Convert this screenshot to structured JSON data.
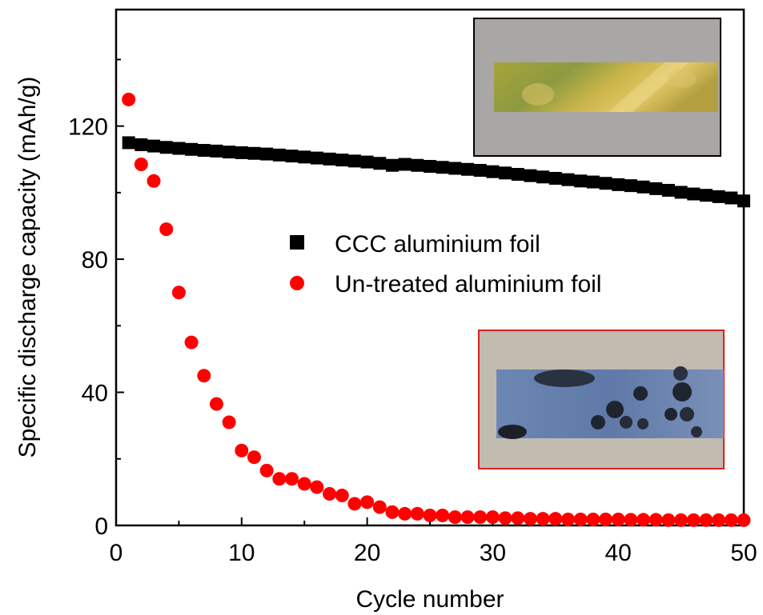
{
  "chart_data": {
    "type": "scatter",
    "xlabel": "Cycle number",
    "ylabel": "Specific discharge capacity (mAh/g)",
    "xlim": [
      0,
      50
    ],
    "ylim": [
      0,
      155
    ],
    "x_ticks": [
      0,
      10,
      20,
      30,
      40,
      50
    ],
    "y_ticks": [
      0,
      40,
      80,
      120
    ],
    "grid": false,
    "legend_position": "center-right",
    "x": [
      1,
      2,
      3,
      4,
      5,
      6,
      7,
      8,
      9,
      10,
      11,
      12,
      13,
      14,
      15,
      16,
      17,
      18,
      19,
      20,
      21,
      22,
      23,
      24,
      25,
      26,
      27,
      28,
      29,
      30,
      31,
      32,
      33,
      34,
      35,
      36,
      37,
      38,
      39,
      40,
      41,
      42,
      43,
      44,
      45,
      46,
      47,
      48,
      49,
      50
    ],
    "series": [
      {
        "name": "CCC aluminium foil",
        "marker": "square",
        "color": "#000000",
        "values": [
          115,
          114.4,
          114,
          113.6,
          113.3,
          113,
          112.7,
          112.5,
          112.2,
          112,
          111.8,
          111.6,
          111.3,
          111,
          110.7,
          110.4,
          110.1,
          109.8,
          109.5,
          109.2,
          108.8,
          108.2,
          108.5,
          108.2,
          107.9,
          107.6,
          107.3,
          107,
          106.7,
          106.3,
          105.9,
          105.5,
          105.1,
          104.7,
          104.3,
          103.9,
          103.5,
          103.2,
          102.8,
          102.4,
          102.1,
          101.7,
          101.2,
          100.7,
          100.1,
          99.6,
          99.2,
          98.8,
          98.4,
          97.5
        ]
      },
      {
        "name": "Un-treated aluminium foil",
        "marker": "circle",
        "color": "#ff0000",
        "values": [
          128,
          108.5,
          103.5,
          89,
          70,
          55,
          45,
          36.5,
          31,
          22.5,
          20.5,
          16.5,
          14,
          14,
          12.5,
          11.5,
          9.5,
          9,
          6.5,
          7,
          5.5,
          4,
          3.5,
          3.5,
          3,
          3,
          2.5,
          2.5,
          2.5,
          2.5,
          2.2,
          2.2,
          2,
          2,
          2,
          1.8,
          1.8,
          1.8,
          1.8,
          1.8,
          1.7,
          1.7,
          1.7,
          1.6,
          1.6,
          1.6,
          1.6,
          1.6,
          1.6,
          1.6
        ]
      }
    ]
  }
}
